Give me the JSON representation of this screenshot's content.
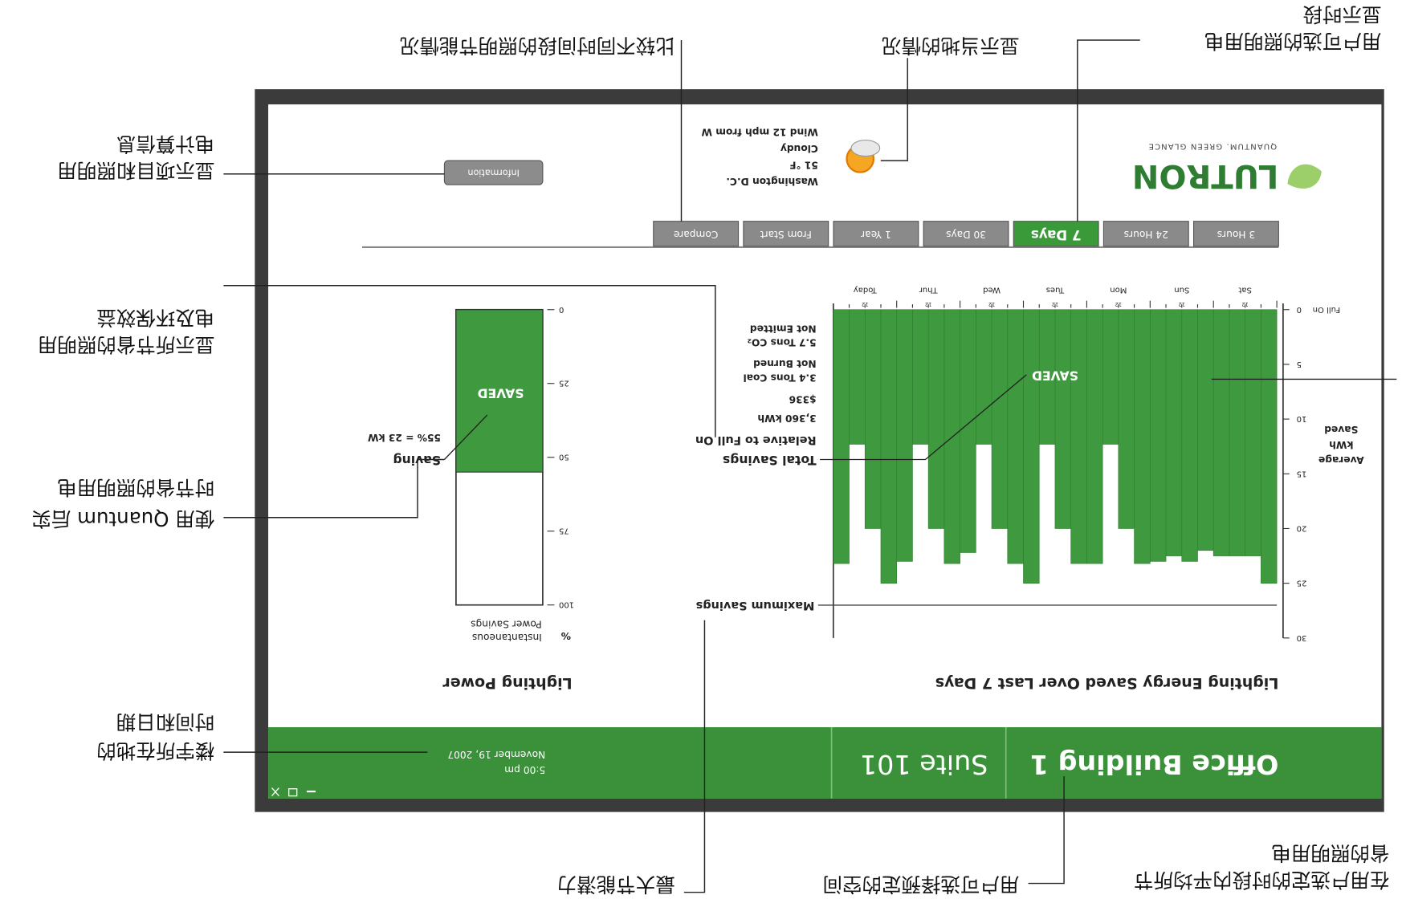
{
  "header": {
    "building": "Office Building 1",
    "suite": "Suite 101",
    "time": "5:00 pm",
    "date": "November 19, 2007"
  },
  "logo": {
    "brand": "LUTRON",
    "tagline": "QUANTUM. GREEN GLANCE"
  },
  "weather": {
    "lines": [
      "Washington D.C.",
      "51 °F",
      "Cloudy",
      "Wind 12 mph from W"
    ]
  },
  "info_button": "Information",
  "tabs": {
    "items": [
      "3 Hours",
      "24 Hours",
      "7 Days",
      "30 Days",
      "1 Year",
      "From Start",
      "Compare"
    ],
    "selected": "7 Days"
  },
  "chart_data": [
    {
      "type": "bar",
      "title": "Lighting Energy Saved Over Last 7 Days",
      "y_label": [
        "Average",
        "kWh",
        "Saved"
      ],
      "baseline_label": "Full On",
      "ylim": [
        0,
        30
      ],
      "yticks": [
        0,
        5,
        10,
        15,
        20,
        25,
        30
      ],
      "categories": [
        "Sat",
        "Sun",
        "Mon",
        "Tues",
        "Wed",
        "Thur",
        "Today"
      ],
      "minor_label": "12",
      "values": [
        [
          25,
          22.5,
          22.5,
          22.5
        ],
        [
          22,
          23,
          22.5,
          23
        ],
        [
          23.2,
          20,
          12.3,
          23.2
        ],
        [
          23.2,
          20,
          12.3,
          25
        ],
        [
          23.2,
          20,
          12.3,
          22.2
        ],
        [
          23.2,
          20,
          12.3,
          23
        ],
        [
          25,
          20,
          12.3,
          23.2
        ]
      ],
      "color": "#3f9a3f",
      "max_line": {
        "label": "Maximum Savings",
        "value": 27
      },
      "annotation": "SAVED",
      "summary": {
        "title": "Total Savings",
        "lines": [
          "Relative to Full On",
          "3,360 kWh",
          "$336",
          "3.4 Tons Coal",
          "Not Burned",
          "5.7 Tons CO₂",
          "Not Emitted"
        ]
      }
    },
    {
      "type": "bar",
      "title": "Lighting Power",
      "unit_label": "%",
      "y_label": [
        "Instantaneous",
        "Power Savings"
      ],
      "ylim": [
        0,
        100
      ],
      "yticks": [
        0,
        25,
        50,
        75,
        100
      ],
      "values": [
        55
      ],
      "value_labels": [
        "55% = 23 kW"
      ],
      "value_title": "Saving",
      "annotation": "SAVED",
      "color": "#3f9a3f"
    }
  ],
  "annotations": [
    {
      "lines": [
        "用户可选的照明用电",
        "显示时段"
      ]
    },
    {
      "lines": [
        "显示当地的情况"
      ]
    },
    {
      "lines": [
        "比较不同时间段的照明节能情况"
      ]
    },
    {
      "lines": [
        "显示项目和照明用",
        "电计算信息"
      ]
    },
    {
      "lines": [
        "显示所节省的照明用",
        "电及环保效益"
      ]
    },
    {
      "lines": [
        "使用 Quantum 后实",
        "时节省的照明用电"
      ]
    },
    {
      "lines": [
        "楼宇所在地的",
        "时间和日期"
      ]
    },
    {
      "lines": [
        "最大节能潜力"
      ]
    },
    {
      "lines": [
        "用户可选择预定的空间"
      ]
    },
    {
      "lines": [
        "在用户选定的时段内平均所节",
        "省的照明用电"
      ]
    }
  ]
}
